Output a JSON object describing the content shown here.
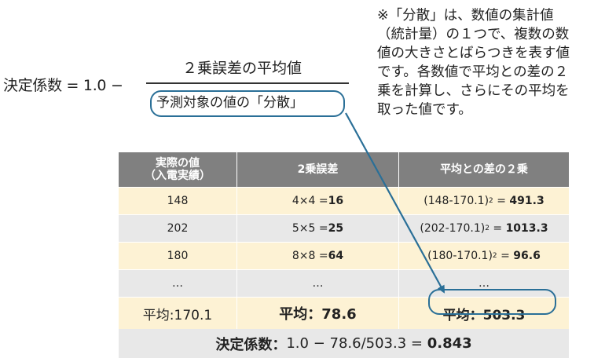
{
  "formula": {
    "lhs": "決定係数 = 1.0 −",
    "numerator": "２乗誤差の平均値",
    "denominator": "予測対象の値の「分散」"
  },
  "note": "※「分散」は、数値の集計値\n（統計量）の１つで、複数の数\n値の大きさとばらつきを表す値\nです。各数値で平均との差の２\n乗を計算し、さらにその平均を\n取った値です。",
  "table": {
    "headers": [
      "実際の値\n（入電実績）",
      "2乗誤差",
      "平均との差の２乗"
    ],
    "rows": [
      {
        "actual": "148",
        "sq_err_expr": "4×4 = ",
        "sq_err_val": "16",
        "dev_expr": "(148-170.1)",
        "dev_sup": "2",
        "dev_eq": " = ",
        "dev_val": "491.3"
      },
      {
        "actual": "202",
        "sq_err_expr": "5×5 = ",
        "sq_err_val": "25",
        "dev_expr": "(202-170.1)",
        "dev_sup": "2",
        "dev_eq": " = ",
        "dev_val": "1013.3"
      },
      {
        "actual": "180",
        "sq_err_expr": "8×8 = ",
        "sq_err_val": "64",
        "dev_expr": "(180-170.1)",
        "dev_sup": "2",
        "dev_eq": " = ",
        "dev_val": "96.6"
      },
      {
        "actual": "…",
        "sq_err_expr": "…",
        "sq_err_val": "",
        "dev_expr": "…",
        "dev_sup": "",
        "dev_eq": "",
        "dev_val": ""
      }
    ],
    "averages": {
      "actual": "平均:170.1",
      "sq_err": "平均：78.6",
      "dev": "平均：503.3"
    },
    "result": {
      "label": "決定係数：",
      "expr": "1.0 − 78.6/503.3 = ",
      "value": "0.843"
    }
  },
  "colors": {
    "accent": "#2a6f97",
    "header_bg": "#808080",
    "row_yellow": "#fdf2d4",
    "row_gray": "#e8e8e8"
  }
}
